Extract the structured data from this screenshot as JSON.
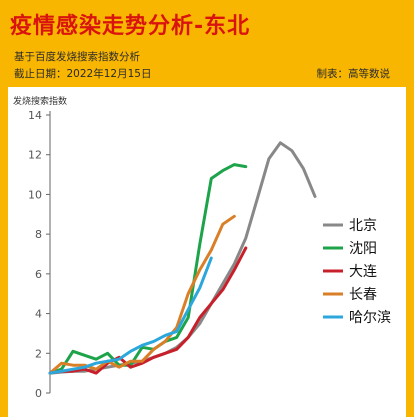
{
  "header": {
    "title": "疫情感染走势分析-东北",
    "subtitle": "基于百度发烧搜索指数分析",
    "date": "截止日期：2022年12月15日",
    "maker": "制表：高等数说"
  },
  "chart_data": {
    "type": "line",
    "ylabel": "发烧搜索指数",
    "xlabel": "",
    "ylim": [
      0,
      14
    ],
    "yticks": [
      0,
      2,
      4,
      6,
      8,
      10,
      12,
      14
    ],
    "x": [
      1,
      2,
      3,
      4,
      5,
      6,
      7,
      8,
      9,
      10,
      11,
      12,
      13,
      14,
      15,
      16,
      17,
      18,
      19,
      20,
      21,
      22,
      23,
      24,
      25,
      26
    ],
    "grid": false,
    "legend_position": "right",
    "series": [
      {
        "name": "北京",
        "color": "#888888",
        "values": [
          1.0,
          1.05,
          1.1,
          1.1,
          1.2,
          1.3,
          1.4,
          1.5,
          1.6,
          1.8,
          2.0,
          2.3,
          2.8,
          3.5,
          4.5,
          5.5,
          6.5,
          7.8,
          9.8,
          11.8,
          12.6,
          12.2,
          11.3,
          9.9,
          null,
          null
        ]
      },
      {
        "name": "沈阳",
        "color": "#1DA34A",
        "values": [
          1.0,
          1.2,
          2.1,
          1.9,
          1.7,
          2.0,
          1.4,
          1.4,
          2.3,
          2.2,
          2.6,
          2.8,
          3.8,
          7.5,
          10.8,
          11.2,
          11.5,
          11.4,
          null,
          null,
          null,
          null,
          null,
          null,
          null,
          null
        ]
      },
      {
        "name": "大连",
        "color": "#C8202A",
        "values": [
          1.0,
          1.1,
          1.1,
          1.2,
          1.0,
          1.5,
          1.8,
          1.3,
          1.5,
          1.8,
          2.0,
          2.2,
          2.8,
          3.8,
          4.5,
          5.2,
          6.2,
          7.3,
          null,
          null,
          null,
          null,
          null,
          null,
          null,
          null
        ]
      },
      {
        "name": "长春",
        "color": "#DA7F27",
        "values": [
          1.0,
          1.5,
          1.4,
          1.4,
          1.2,
          1.6,
          1.3,
          1.6,
          1.6,
          2.2,
          2.6,
          3.3,
          5.0,
          6.2,
          7.2,
          8.5,
          8.9,
          null,
          null,
          null,
          null,
          null,
          null,
          null,
          null,
          null
        ]
      },
      {
        "name": "哈尔滨",
        "color": "#2BA7DC",
        "values": [
          1.0,
          1.1,
          1.2,
          1.3,
          1.5,
          1.6,
          1.7,
          2.1,
          2.4,
          2.6,
          2.9,
          3.1,
          4.2,
          5.3,
          6.8,
          null,
          null,
          null,
          null,
          null,
          null,
          null,
          null,
          null,
          null,
          null
        ]
      }
    ]
  }
}
